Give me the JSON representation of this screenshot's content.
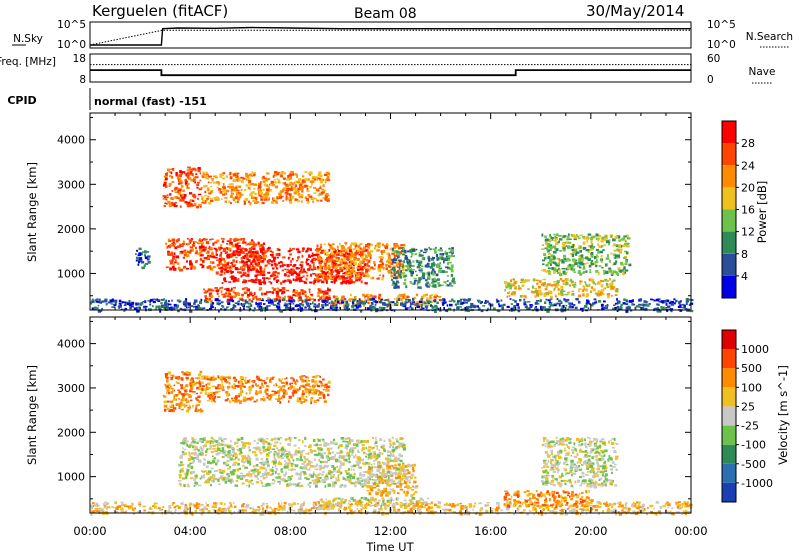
{
  "header": {
    "station": "Kerguelen (fitACF)",
    "beam": "Beam 08",
    "date": "30/May/2014"
  },
  "chart_data": [
    {
      "type": "line",
      "panel": "N.Sky / N.Search",
      "left_label": "N.Sky",
      "right_label": "N.Search",
      "left_ticks": [
        "10^5",
        "10^0"
      ],
      "right_ticks": [
        "10^5",
        "10^0"
      ],
      "series": [
        {
          "name": "N.Sky",
          "style": "solid",
          "x": [
            0,
            2.85,
            2.9,
            3.5,
            5.0,
            6.5,
            8.0,
            10.0,
            14.0,
            18.0,
            22.0,
            24.0
          ],
          "y": [
            1,
            1,
            20000,
            30000,
            25000,
            40000,
            30000,
            20000,
            20000,
            20000,
            20000,
            20000
          ]
        },
        {
          "name": "N.Search",
          "style": "dotted",
          "x": [
            0,
            2.9,
            24.0
          ],
          "y": [
            1,
            8000,
            8000
          ]
        }
      ]
    },
    {
      "type": "line",
      "panel": "Freq / Nave",
      "left_label": "Freq. [MHz]",
      "right_label": "Nave",
      "left_ticks": [
        "18",
        "8"
      ],
      "right_ticks": [
        "60",
        "0"
      ],
      "series": [
        {
          "name": "Freq. [MHz]",
          "style": "solid",
          "x": [
            0,
            2.85,
            2.85,
            17.0,
            17.0,
            24.0
          ],
          "y": [
            12.5,
            12.5,
            10.2,
            10.2,
            12.5,
            12.5
          ]
        },
        {
          "name": "Nave",
          "style": "dotted",
          "x": [
            0,
            24.0
          ],
          "y": [
            42,
            42
          ]
        }
      ]
    },
    {
      "type": "text",
      "panel": "CPID",
      "label": "CPID",
      "value": "normal (fast) -151"
    },
    {
      "type": "heatmap",
      "panel": "Power",
      "ylabel": "Slant Range [km]",
      "yticks": [
        "1000",
        "2000",
        "3000",
        "4000"
      ],
      "ylim": [
        180,
        4600
      ],
      "colorbar_label": "Power [dB]",
      "colorbar_ticks": [
        "4",
        "8",
        "12",
        "16",
        "20",
        "24",
        "28"
      ],
      "colorbar_colors": [
        "#0000e6",
        "#2a4f9a",
        "#2e8b57",
        "#6cc24a",
        "#f0c020",
        "#ff8c00",
        "#ff4500",
        "#ff0000"
      ],
      "regions": [
        {
          "x": [
            2.9,
            4.4
          ],
          "y": [
            2500,
            3400
          ],
          "level": 6
        },
        {
          "x": [
            4.4,
            9.5
          ],
          "y": [
            2600,
            3300
          ],
          "level": 5
        },
        {
          "x": [
            3.0,
            7.0
          ],
          "y": [
            1100,
            1800
          ],
          "level": 6
        },
        {
          "x": [
            5.0,
            11.0
          ],
          "y": [
            800,
            1600
          ],
          "level": 7
        },
        {
          "x": [
            9.0,
            12.5
          ],
          "y": [
            900,
            1700
          ],
          "level": 5
        },
        {
          "x": [
            12.0,
            14.5
          ],
          "y": [
            700,
            1600
          ],
          "level": 2
        },
        {
          "x": [
            4.5,
            9.5
          ],
          "y": [
            400,
            700
          ],
          "level": 6
        },
        {
          "x": [
            9.5,
            14.0
          ],
          "y": [
            300,
            550
          ],
          "level": 5
        },
        {
          "x": [
            18.0,
            21.5
          ],
          "y": [
            1000,
            1900
          ],
          "level": 3
        },
        {
          "x": [
            16.5,
            21.0
          ],
          "y": [
            500,
            900
          ],
          "level": 4
        },
        {
          "x": [
            0.0,
            24.0
          ],
          "y": [
            180,
            450
          ],
          "level": 1
        },
        {
          "x": [
            1.8,
            2.3
          ],
          "y": [
            1150,
            1600
          ],
          "level": 1
        }
      ]
    },
    {
      "type": "heatmap",
      "panel": "Velocity",
      "xlabel": "Time UT",
      "xticks": [
        "00:00",
        "04:00",
        "08:00",
        "12:00",
        "16:00",
        "20:00",
        "00:00"
      ],
      "xlim": [
        0,
        24
      ],
      "ylabel": "Slant Range [km]",
      "yticks": [
        "1000",
        "2000",
        "3000",
        "4000"
      ],
      "ylim": [
        180,
        4600
      ],
      "colorbar_label": "Velocity [m s^-1]",
      "colorbar_ticks": [
        "1000",
        "500",
        "100",
        "25",
        "-25",
        "-100",
        "-500",
        "-1000"
      ],
      "colorbar_colors": [
        "#1a3fb5",
        "#2a6fb0",
        "#2e8b57",
        "#6cc24a",
        "#c8c8c8",
        "#f0c020",
        "#ff8c00",
        "#ff4500",
        "#e00000"
      ],
      "regions": [
        {
          "x": [
            2.9,
            4.4
          ],
          "y": [
            2500,
            3400
          ],
          "level": 6
        },
        {
          "x": [
            4.4,
            9.5
          ],
          "y": [
            2700,
            3300
          ],
          "level": 6
        },
        {
          "x": [
            3.5,
            12.5
          ],
          "y": [
            800,
            1900
          ],
          "level": 4
        },
        {
          "x": [
            11.0,
            13.0
          ],
          "y": [
            600,
            1300
          ],
          "level": 5
        },
        {
          "x": [
            9.0,
            13.5
          ],
          "y": [
            350,
            550
          ],
          "level": 4
        },
        {
          "x": [
            18.0,
            21.0
          ],
          "y": [
            800,
            1900
          ],
          "level": 4
        },
        {
          "x": [
            0.0,
            24.0
          ],
          "y": [
            180,
            450
          ],
          "level": 5
        },
        {
          "x": [
            16.5,
            20.0
          ],
          "y": [
            350,
            700
          ],
          "level": 6
        }
      ]
    }
  ]
}
